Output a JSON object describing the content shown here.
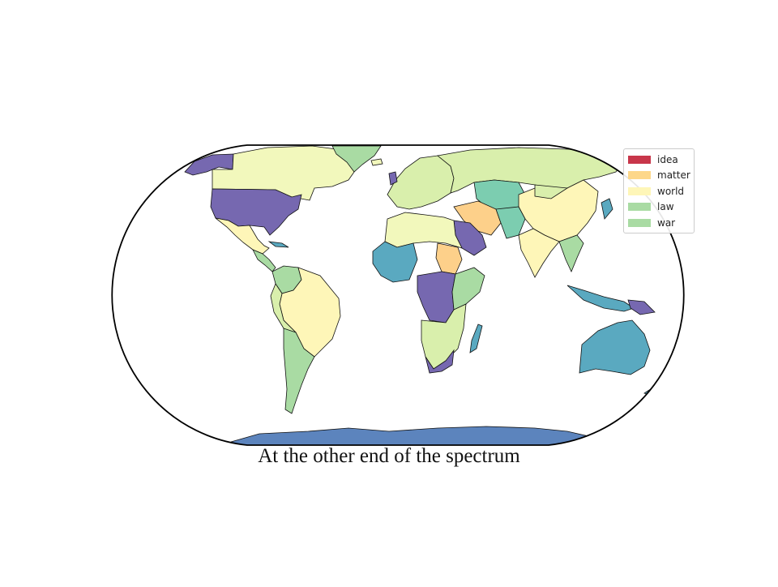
{
  "map": {
    "caption": "At the other end of the spectrum",
    "projection": "eckert-iv",
    "ocean_color": "#ffffff",
    "border_color": "#000000",
    "legend": {
      "placement": "top-right",
      "items": [
        {
          "label": "idea",
          "color": "#c8364a"
        },
        {
          "label": "matter",
          "color": "#fdd78a"
        },
        {
          "label": "world",
          "color": "#fef6b8"
        },
        {
          "label": "law",
          "color": "#a9dba3"
        },
        {
          "label": "war",
          "color": "#a9dba3"
        }
      ]
    },
    "palette": {
      "purple": "#7668b0",
      "teal": "#5aa9c0",
      "yellow_green": "#f2f8bc",
      "pale_yellow": "#fef6b8",
      "light_green": "#d9efac",
      "green": "#a9dba3",
      "mint": "#7ccdb0",
      "orange": "#fdd08a",
      "antarctica_blue": "#5c84bd"
    }
  }
}
